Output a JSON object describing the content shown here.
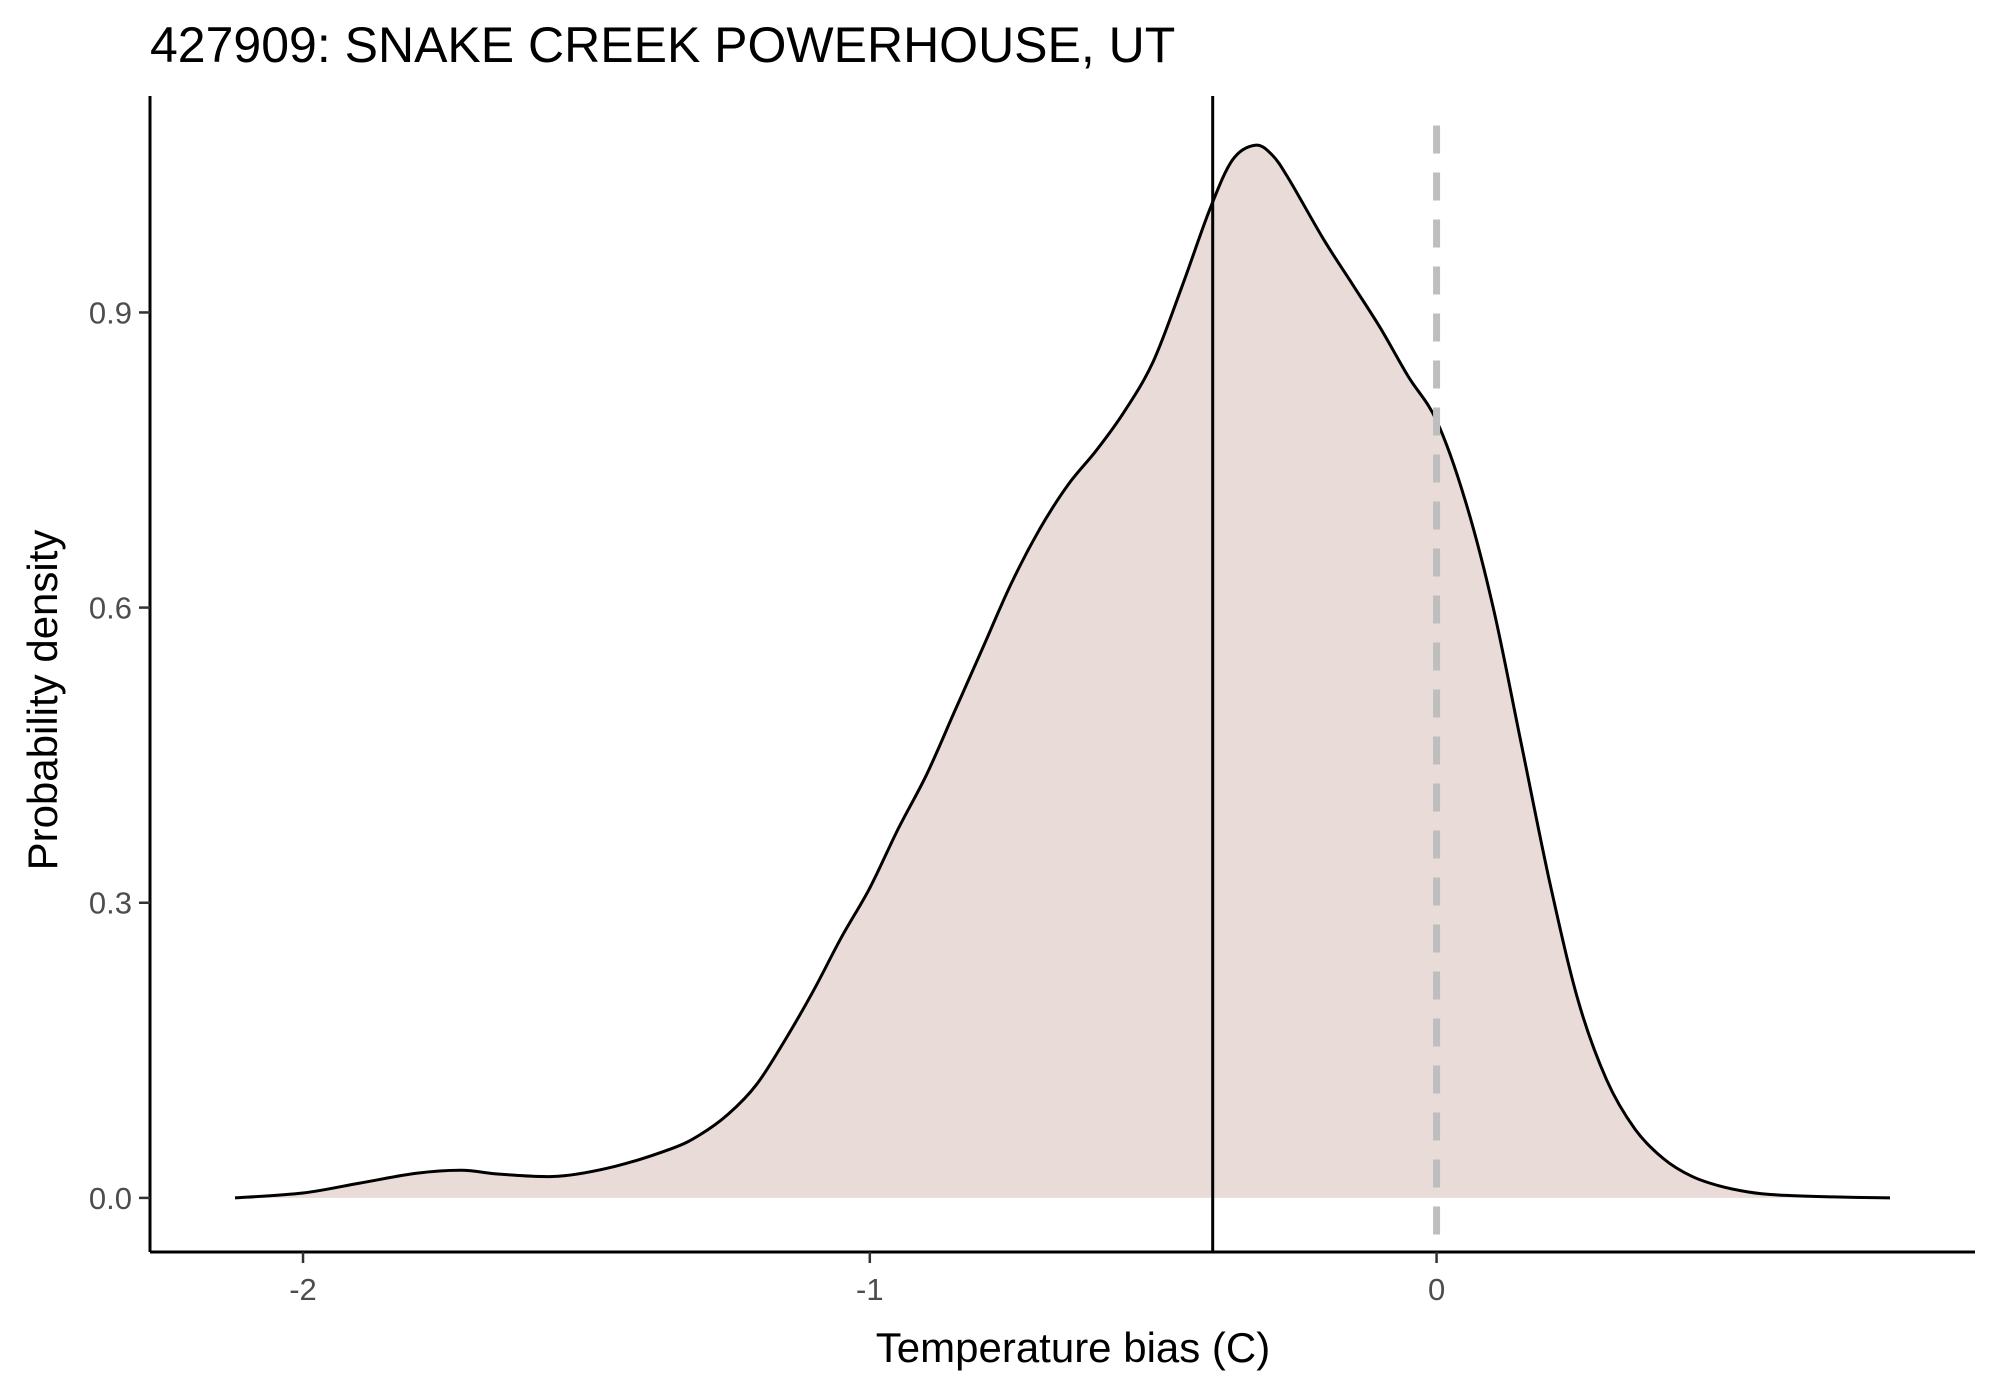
{
  "chart_data": {
    "type": "area",
    "title": "427909: SNAKE CREEK POWERHOUSE, UT",
    "xlabel": "Temperature bias (C)",
    "ylabel": "Probability density",
    "xlim": [
      -2.27,
      0.95
    ],
    "ylim": [
      -0.055,
      1.12
    ],
    "x_ticks": [
      {
        "value": -2,
        "label": "-2"
      },
      {
        "value": -1,
        "label": "-1"
      },
      {
        "value": 0,
        "label": "0"
      }
    ],
    "y_ticks": [
      {
        "value": 0.0,
        "label": "0.0"
      },
      {
        "value": 0.3,
        "label": "0.3"
      },
      {
        "value": 0.6,
        "label": "0.6"
      },
      {
        "value": 0.9,
        "label": "0.9"
      }
    ],
    "fill_color": "#e9dbd7",
    "line_color": "#000000",
    "grid": false,
    "series": [
      {
        "x": [
          -2.12,
          -2.0,
          -1.9,
          -1.8,
          -1.72,
          -1.65,
          -1.55,
          -1.45,
          -1.35,
          -1.3,
          -1.25,
          -1.2,
          -1.15,
          -1.1,
          -1.05,
          -1.0,
          -0.95,
          -0.9,
          -0.85,
          -0.8,
          -0.75,
          -0.7,
          -0.65,
          -0.6,
          -0.55,
          -0.5,
          -0.45,
          -0.4,
          -0.36,
          -0.32,
          -0.29,
          -0.26,
          -0.2,
          -0.15,
          -0.1,
          -0.05,
          0.0,
          0.05,
          0.1,
          0.15,
          0.2,
          0.25,
          0.3,
          0.35,
          0.4,
          0.45,
          0.5,
          0.55,
          0.6,
          0.7,
          0.8
        ],
        "y": [
          0.0,
          0.005,
          0.015,
          0.025,
          0.028,
          0.024,
          0.022,
          0.032,
          0.05,
          0.064,
          0.085,
          0.115,
          0.16,
          0.21,
          0.265,
          0.315,
          0.375,
          0.43,
          0.495,
          0.56,
          0.625,
          0.68,
          0.725,
          0.76,
          0.8,
          0.85,
          0.925,
          1.005,
          1.055,
          1.07,
          1.06,
          1.035,
          0.975,
          0.93,
          0.885,
          0.835,
          0.79,
          0.71,
          0.6,
          0.46,
          0.32,
          0.2,
          0.12,
          0.07,
          0.04,
          0.022,
          0.012,
          0.006,
          0.003,
          0.001,
          0.0
        ]
      }
    ],
    "reference_lines": [
      {
        "x": -0.395,
        "style": "solid",
        "color": "#000000"
      },
      {
        "x": 0.0,
        "style": "dashed",
        "color": "#bebebe"
      }
    ]
  }
}
